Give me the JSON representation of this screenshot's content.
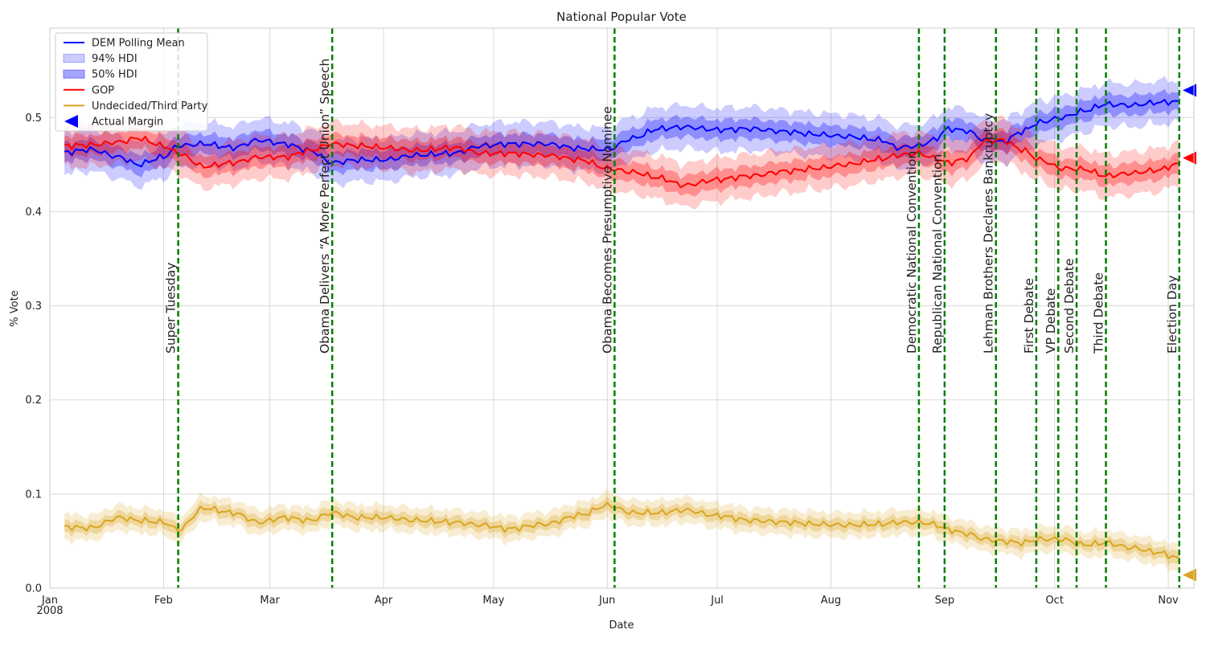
{
  "chart_data": {
    "type": "line",
    "title": "National Popular Vote",
    "xlabel": "Date",
    "ylabel": "% Vote",
    "xlim": [
      "2008-01-01",
      "2008-11-08"
    ],
    "ylim": [
      0.0,
      0.595
    ],
    "grid": true,
    "legend_position": "top-left",
    "x_ticks": [
      {
        "date": "2008-01-01",
        "label": "Jan",
        "sublabel": "2008"
      },
      {
        "date": "2008-02-01",
        "label": "Feb"
      },
      {
        "date": "2008-03-01",
        "label": "Mar"
      },
      {
        "date": "2008-04-01",
        "label": "Apr"
      },
      {
        "date": "2008-05-01",
        "label": "May"
      },
      {
        "date": "2008-06-01",
        "label": "Jun"
      },
      {
        "date": "2008-07-01",
        "label": "Jul"
      },
      {
        "date": "2008-08-01",
        "label": "Aug"
      },
      {
        "date": "2008-09-01",
        "label": "Sep"
      },
      {
        "date": "2008-10-01",
        "label": "Oct"
      },
      {
        "date": "2008-11-01",
        "label": "Nov"
      }
    ],
    "y_ticks": [
      {
        "value": 0.0,
        "label": "0.0"
      },
      {
        "value": 0.1,
        "label": "0.1"
      },
      {
        "value": 0.2,
        "label": "0.2"
      },
      {
        "value": 0.3,
        "label": "0.3"
      },
      {
        "value": 0.4,
        "label": "0.4"
      },
      {
        "value": 0.5,
        "label": "0.5"
      }
    ],
    "legend": [
      {
        "label": "DEM Polling Mean",
        "kind": "line",
        "color": "#0000ff"
      },
      {
        "label": "94% HDI",
        "kind": "band-outer",
        "color": "#0000ff"
      },
      {
        "label": "50% HDI",
        "kind": "band-inner",
        "color": "#0000ff"
      },
      {
        "label": "GOP",
        "kind": "line",
        "color": "#ff0000"
      },
      {
        "label": "Undecided/Third Party",
        "kind": "line",
        "color": "#daa520"
      },
      {
        "label": "Actual Margin",
        "kind": "marker",
        "color": "#0000ff"
      }
    ],
    "series": [
      {
        "name": "DEM Polling Mean",
        "color": "#0000ff",
        "points": [
          [
            "2008-01-05",
            0.463
          ],
          [
            "2008-01-12",
            0.466
          ],
          [
            "2008-01-20",
            0.458
          ],
          [
            "2008-01-25",
            0.45
          ],
          [
            "2008-02-01",
            0.458
          ],
          [
            "2008-02-05",
            0.47
          ],
          [
            "2008-02-12",
            0.472
          ],
          [
            "2008-02-20",
            0.468
          ],
          [
            "2008-02-27",
            0.476
          ],
          [
            "2008-03-05",
            0.472
          ],
          [
            "2008-03-12",
            0.465
          ],
          [
            "2008-03-18",
            0.452
          ],
          [
            "2008-03-25",
            0.455
          ],
          [
            "2008-04-01",
            0.455
          ],
          [
            "2008-04-10",
            0.46
          ],
          [
            "2008-04-20",
            0.462
          ],
          [
            "2008-04-28",
            0.47
          ],
          [
            "2008-05-05",
            0.472
          ],
          [
            "2008-05-15",
            0.472
          ],
          [
            "2008-05-25",
            0.467
          ],
          [
            "2008-06-01",
            0.466
          ],
          [
            "2008-06-08",
            0.478
          ],
          [
            "2008-06-15",
            0.488
          ],
          [
            "2008-06-22",
            0.49
          ],
          [
            "2008-07-01",
            0.487
          ],
          [
            "2008-07-10",
            0.488
          ],
          [
            "2008-07-20",
            0.485
          ],
          [
            "2008-07-28",
            0.482
          ],
          [
            "2008-08-05",
            0.48
          ],
          [
            "2008-08-15",
            0.476
          ],
          [
            "2008-08-19",
            0.468
          ],
          [
            "2008-08-25",
            0.47
          ],
          [
            "2008-08-29",
            0.476
          ],
          [
            "2008-09-02",
            0.488
          ],
          [
            "2008-09-07",
            0.486
          ],
          [
            "2008-09-12",
            0.476
          ],
          [
            "2008-09-17",
            0.474
          ],
          [
            "2008-09-22",
            0.485
          ],
          [
            "2008-09-27",
            0.495
          ],
          [
            "2008-10-03",
            0.5
          ],
          [
            "2008-10-09",
            0.507
          ],
          [
            "2008-10-15",
            0.514
          ],
          [
            "2008-10-22",
            0.513
          ],
          [
            "2008-10-29",
            0.516
          ],
          [
            "2008-11-04",
            0.517
          ]
        ],
        "inner_halfwidth": 0.01,
        "outer_halfwidth": 0.022
      },
      {
        "name": "GOP",
        "color": "#ff0000",
        "points": [
          [
            "2008-01-05",
            0.47
          ],
          [
            "2008-01-12",
            0.471
          ],
          [
            "2008-01-20",
            0.474
          ],
          [
            "2008-01-25",
            0.478
          ],
          [
            "2008-02-01",
            0.47
          ],
          [
            "2008-02-05",
            0.462
          ],
          [
            "2008-02-12",
            0.448
          ],
          [
            "2008-02-20",
            0.452
          ],
          [
            "2008-02-27",
            0.458
          ],
          [
            "2008-03-05",
            0.458
          ],
          [
            "2008-03-12",
            0.465
          ],
          [
            "2008-03-18",
            0.472
          ],
          [
            "2008-03-25",
            0.47
          ],
          [
            "2008-04-01",
            0.468
          ],
          [
            "2008-04-10",
            0.465
          ],
          [
            "2008-04-20",
            0.468
          ],
          [
            "2008-04-28",
            0.462
          ],
          [
            "2008-05-05",
            0.462
          ],
          [
            "2008-05-15",
            0.46
          ],
          [
            "2008-05-25",
            0.455
          ],
          [
            "2008-06-01",
            0.446
          ],
          [
            "2008-06-08",
            0.442
          ],
          [
            "2008-06-15",
            0.436
          ],
          [
            "2008-06-22",
            0.428
          ],
          [
            "2008-07-01",
            0.434
          ],
          [
            "2008-07-10",
            0.438
          ],
          [
            "2008-07-20",
            0.443
          ],
          [
            "2008-07-28",
            0.446
          ],
          [
            "2008-08-05",
            0.45
          ],
          [
            "2008-08-15",
            0.456
          ],
          [
            "2008-08-19",
            0.46
          ],
          [
            "2008-08-25",
            0.462
          ],
          [
            "2008-08-29",
            0.457
          ],
          [
            "2008-09-02",
            0.452
          ],
          [
            "2008-09-07",
            0.456
          ],
          [
            "2008-09-12",
            0.475
          ],
          [
            "2008-09-17",
            0.476
          ],
          [
            "2008-09-22",
            0.466
          ],
          [
            "2008-09-27",
            0.455
          ],
          [
            "2008-10-03",
            0.446
          ],
          [
            "2008-10-09",
            0.445
          ],
          [
            "2008-10-15",
            0.438
          ],
          [
            "2008-10-22",
            0.441
          ],
          [
            "2008-10-29",
            0.444
          ],
          [
            "2008-11-04",
            0.451
          ]
        ],
        "inner_halfwidth": 0.01,
        "outer_halfwidth": 0.022
      },
      {
        "name": "Undecided/Third Party",
        "color": "#daa520",
        "points": [
          [
            "2008-01-05",
            0.065
          ],
          [
            "2008-01-12",
            0.064
          ],
          [
            "2008-01-20",
            0.075
          ],
          [
            "2008-01-25",
            0.072
          ],
          [
            "2008-02-01",
            0.07
          ],
          [
            "2008-02-05",
            0.062
          ],
          [
            "2008-02-12",
            0.085
          ],
          [
            "2008-02-20",
            0.08
          ],
          [
            "2008-02-27",
            0.07
          ],
          [
            "2008-03-05",
            0.075
          ],
          [
            "2008-03-12",
            0.072
          ],
          [
            "2008-03-18",
            0.08
          ],
          [
            "2008-03-25",
            0.075
          ],
          [
            "2008-04-01",
            0.075
          ],
          [
            "2008-04-10",
            0.072
          ],
          [
            "2008-04-20",
            0.07
          ],
          [
            "2008-04-28",
            0.067
          ],
          [
            "2008-05-05",
            0.063
          ],
          [
            "2008-05-15",
            0.068
          ],
          [
            "2008-05-25",
            0.078
          ],
          [
            "2008-06-01",
            0.088
          ],
          [
            "2008-06-08",
            0.08
          ],
          [
            "2008-06-15",
            0.08
          ],
          [
            "2008-06-22",
            0.083
          ],
          [
            "2008-07-01",
            0.077
          ],
          [
            "2008-07-10",
            0.072
          ],
          [
            "2008-07-20",
            0.07
          ],
          [
            "2008-07-28",
            0.068
          ],
          [
            "2008-08-05",
            0.067
          ],
          [
            "2008-08-15",
            0.068
          ],
          [
            "2008-08-19",
            0.07
          ],
          [
            "2008-08-25",
            0.07
          ],
          [
            "2008-08-29",
            0.068
          ],
          [
            "2008-09-02",
            0.062
          ],
          [
            "2008-09-07",
            0.058
          ],
          [
            "2008-09-12",
            0.052
          ],
          [
            "2008-09-17",
            0.05
          ],
          [
            "2008-09-22",
            0.048
          ],
          [
            "2008-09-27",
            0.052
          ],
          [
            "2008-10-03",
            0.052
          ],
          [
            "2008-10-09",
            0.046
          ],
          [
            "2008-10-15",
            0.048
          ],
          [
            "2008-10-22",
            0.043
          ],
          [
            "2008-10-29",
            0.038
          ],
          [
            "2008-11-04",
            0.032
          ]
        ],
        "inner_halfwidth": 0.006,
        "outer_halfwidth": 0.013
      }
    ],
    "events": [
      {
        "date": "2008-02-05",
        "label": "Super Tuesday"
      },
      {
        "date": "2008-03-18",
        "label": "Obama Delivers “A More Perfect Union” Speech"
      },
      {
        "date": "2008-06-03",
        "label": "Obama Becomes Presumptive Nominee"
      },
      {
        "date": "2008-08-25",
        "label": "Democratic National Convention"
      },
      {
        "date": "2008-09-01",
        "label": "Republican National Convention"
      },
      {
        "date": "2008-09-15",
        "label": "Lehman Brothers Declares Bankruptcy"
      },
      {
        "date": "2008-09-26",
        "label": "First Debate"
      },
      {
        "date": "2008-10-02",
        "label": "VP Debate"
      },
      {
        "date": "2008-10-07",
        "label": "Second Debate"
      },
      {
        "date": "2008-10-15",
        "label": "Third Debate"
      },
      {
        "date": "2008-11-04",
        "label": "Election Day"
      }
    ],
    "actual_results": [
      {
        "name": "DEM",
        "value": 0.529,
        "color": "#0000ff"
      },
      {
        "name": "GOP",
        "value": 0.457,
        "color": "#ff0000"
      },
      {
        "name": "Undecided/Third Party",
        "value": 0.014,
        "color": "#daa520"
      }
    ]
  }
}
